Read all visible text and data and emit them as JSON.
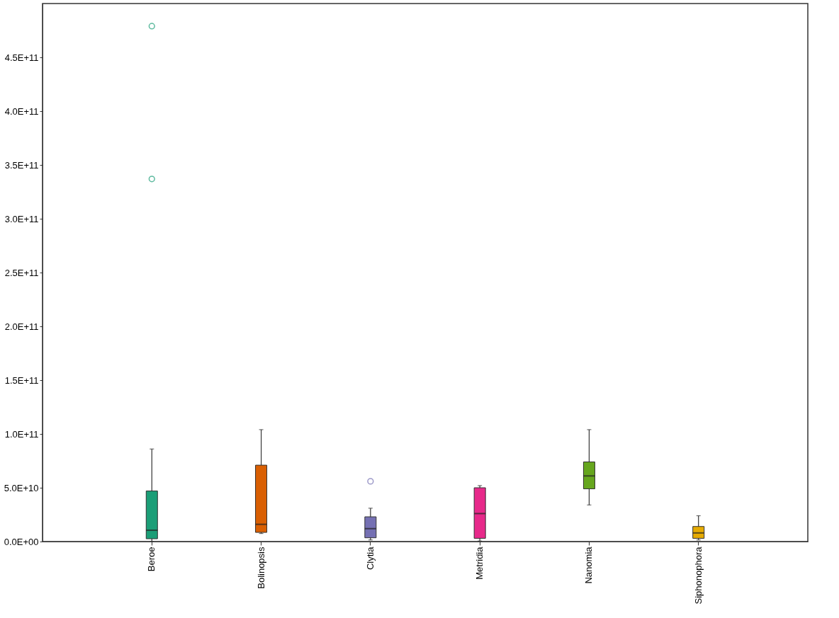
{
  "chart_data": {
    "type": "box",
    "categories": [
      "Beroe",
      "Bolinopsis",
      "Clytia",
      "Metridia",
      "Nanomia",
      "Siphonophora"
    ],
    "colors": [
      "#1b9e77",
      "#d95f02",
      "#7570b3",
      "#e7298a",
      "#66a61e",
      "#e6ab02"
    ],
    "boxes": [
      {
        "low": 0,
        "q1": 2600000000,
        "median": 10500000000,
        "q3": 47000000000,
        "high": 86000000000,
        "outliers": [
          337000000000,
          479000000000
        ]
      },
      {
        "low": 7500000000,
        "q1": 8500000000,
        "median": 16000000000,
        "q3": 71000000000,
        "high": 104000000000
      },
      {
        "low": 1500000000,
        "q1": 3500000000,
        "median": 12000000000,
        "q3": 23000000000,
        "high": 31000000000,
        "outliers": [
          56000000000
        ]
      },
      {
        "low": 500000000,
        "q1": 3000000000,
        "median": 26000000000,
        "q3": 50000000000,
        "high": 52000000000
      },
      {
        "low": 34000000000,
        "q1": 49000000000,
        "median": 61000000000,
        "q3": 74000000000,
        "high": 104000000000
      },
      {
        "low": 1500000000,
        "q1": 3000000000,
        "median": 8000000000,
        "q3": 14000000000,
        "high": 24000000000
      }
    ],
    "ylim": [
      0,
      500000000000
    ],
    "yticks": [
      {
        "value": 0,
        "label": "0.0E+00"
      },
      {
        "value": 50000000000,
        "label": "5.0E+10"
      },
      {
        "value": 100000000000,
        "label": "1.0E+11"
      },
      {
        "value": 150000000000,
        "label": "1.5E+11"
      },
      {
        "value": 200000000000,
        "label": "2.0E+11"
      },
      {
        "value": 250000000000,
        "label": "2.5E+11"
      },
      {
        "value": 300000000000,
        "label": "3.0E+11"
      },
      {
        "value": 350000000000,
        "label": "3.5E+11"
      },
      {
        "value": 400000000000,
        "label": "4.0E+11"
      },
      {
        "value": 450000000000,
        "label": "4.5E+11"
      }
    ],
    "grid": false,
    "legend": false
  }
}
